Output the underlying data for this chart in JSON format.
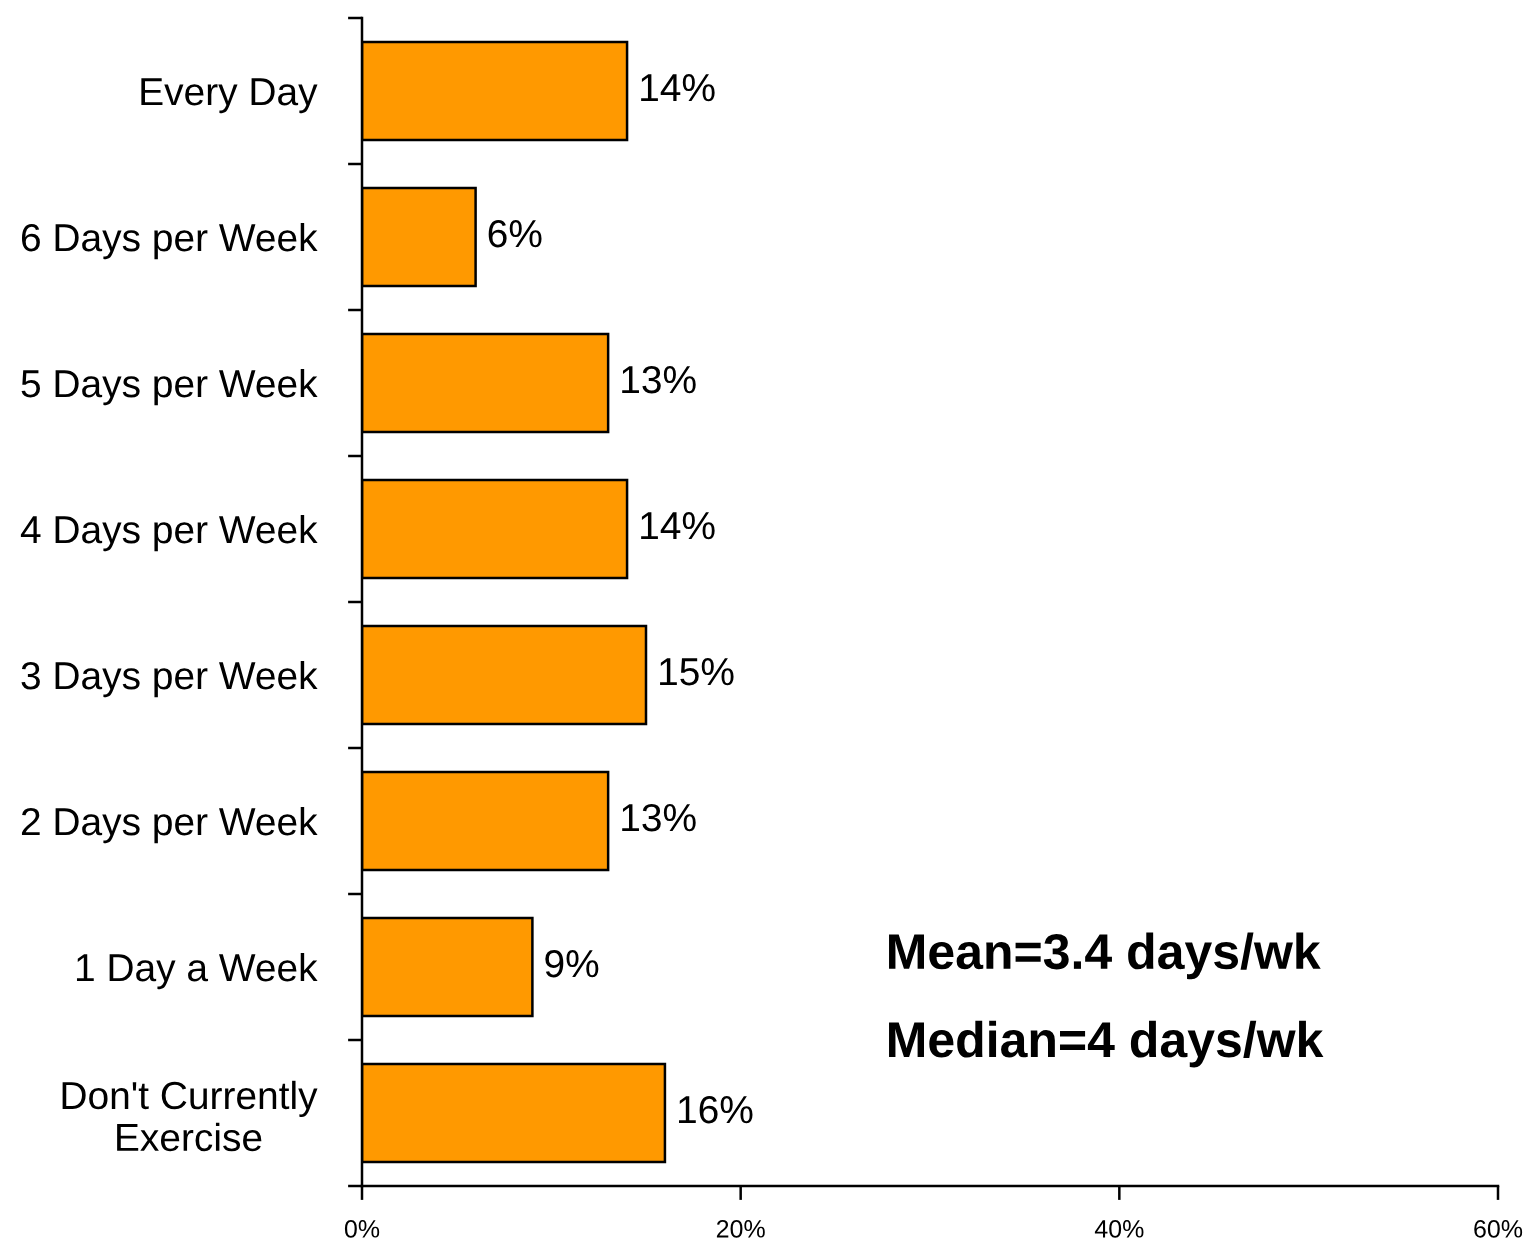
{
  "chart_data": {
    "type": "bar",
    "orientation": "horizontal",
    "categories": [
      "Every Day",
      "6 Days per Week",
      "5 Days per Week",
      "4 Days per Week",
      "3 Days per Week",
      "2 Days per Week",
      "1 Day a Week",
      "Don't Currently\nExercise"
    ],
    "values": [
      14,
      6,
      13,
      14,
      15,
      13,
      9,
      16
    ],
    "color": "#ff9900",
    "value_labels": [
      "14%",
      "6%",
      "13%",
      "14%",
      "15%",
      "13%",
      "9%",
      "16%"
    ],
    "xlim": [
      0,
      60
    ],
    "xticks": [
      {
        "value": 0,
        "label": "0%"
      },
      {
        "value": 20,
        "label": "20%"
      },
      {
        "value": 40,
        "label": "40%"
      },
      {
        "value": 60,
        "label": "60%"
      }
    ],
    "annotations": [
      "Mean=3.4 days/wk",
      "Median=4 days/wk"
    ]
  }
}
